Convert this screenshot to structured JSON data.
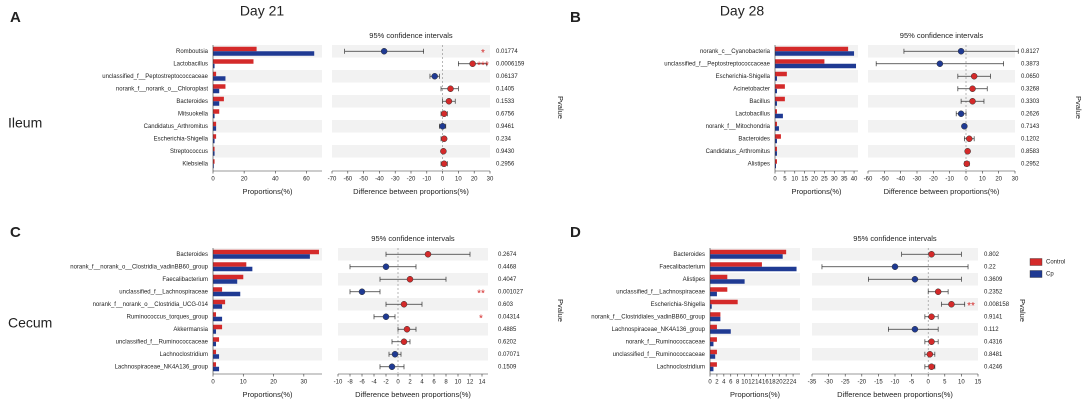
{
  "chart_data": {
    "type": "extended_error_bar",
    "legend": [
      {
        "name": "Control",
        "color": "#d42a2a"
      },
      {
        "name": "Cp",
        "color": "#1f3a93"
      }
    ],
    "column_titles": [
      "Day 21",
      "Day 28"
    ],
    "row_titles": [
      "Ileum",
      "Cecum"
    ],
    "panels": [
      {
        "letter": "A",
        "ci_title": "95% confidence intervals",
        "bar_axis_label": "Proportions(%)",
        "ci_axis_label": "Difference between proportions(%)",
        "pvalue_label": "Pvalue",
        "categories": [
          "Romboutsia",
          "Lactobacillus",
          "unclassified_f__Peptostreptococcaceae",
          "norank_f__norank_o__Chloroplast",
          "Bacteroides",
          "Mitsuokella",
          "Candidatus_Arthromitus",
          "Escherichia-Shigella",
          "Streptococcus",
          "Klebsiella"
        ],
        "control": [
          28,
          26,
          2,
          8,
          7,
          4,
          2,
          2,
          1,
          1
        ],
        "cp": [
          65,
          1,
          8,
          4,
          4,
          1,
          2,
          1,
          1,
          0.5
        ],
        "differences": [
          -37,
          19,
          -5,
          5,
          4,
          1,
          0,
          1,
          0.5,
          1
        ],
        "ci_low": [
          -62,
          10,
          -8,
          -1,
          0,
          -1,
          -2,
          -1,
          0,
          -1
        ],
        "ci_high": [
          -12,
          28,
          -2,
          10,
          8,
          3,
          2,
          2,
          1,
          3
        ],
        "pvalues": [
          "0.01774",
          "0.0006159",
          "0.06137",
          "0.1405",
          "0.1533",
          "0.6756",
          "0.9461",
          "0.234",
          "0.9430",
          "0.2956"
        ],
        "significance": [
          "*",
          "***",
          null,
          null,
          null,
          null,
          null,
          null,
          null,
          null
        ],
        "bar_xlim": [
          0,
          70
        ],
        "bar_xticks": [
          0,
          20,
          40,
          60
        ],
        "ci_xlim": [
          -70,
          30
        ],
        "ci_xticks": [
          -70,
          -60,
          -50,
          -40,
          -30,
          -20,
          -10,
          0,
          10,
          20,
          30
        ]
      },
      {
        "letter": "B",
        "ci_title": "95% confidence intervals",
        "bar_axis_label": "Proportions(%)",
        "ci_axis_label": "Difference between proportions(%)",
        "pvalue_label": "Pvalue",
        "categories": [
          "norank_c__Cyanobacteria",
          "unclassified_f__Peptostreptococcaceae",
          "Escherichia-Shigella",
          "Acinetobacter",
          "Bacillus",
          "Lactobacillus",
          "norank_f__Mitochondria",
          "Bacteroides",
          "Candidatus_Arthromitus",
          "Alistipes"
        ],
        "control": [
          37,
          25,
          6,
          5,
          5,
          1,
          1,
          3,
          1,
          1
        ],
        "cp": [
          40,
          41,
          1,
          1,
          1,
          4,
          2,
          1,
          1,
          0.5
        ],
        "differences": [
          -3,
          -16,
          5,
          4,
          4,
          -3,
          -1,
          2,
          1,
          0.5
        ],
        "ci_low": [
          -38,
          -55,
          -5,
          -5,
          -3,
          -6,
          -2,
          -1,
          0,
          -1
        ],
        "ci_high": [
          32,
          23,
          15,
          13,
          11,
          0,
          0,
          5,
          2,
          2
        ],
        "pvalues": [
          "0.8127",
          "0.3873",
          "0.0650",
          "0.3268",
          "0.3303",
          "0.2626",
          "0.7143",
          "0.1202",
          "0.8583",
          "0.2952"
        ],
        "significance": [
          null,
          null,
          null,
          null,
          null,
          null,
          null,
          null,
          null,
          null
        ],
        "bar_xlim": [
          0,
          42
        ],
        "bar_xticks": [
          0,
          5,
          10,
          15,
          20,
          25,
          30,
          35,
          40
        ],
        "ci_xlim": [
          -60,
          30
        ],
        "ci_xticks": [
          -60,
          -50,
          -40,
          -30,
          -20,
          -10,
          0,
          10,
          20,
          30
        ]
      },
      {
        "letter": "C",
        "ci_title": "95% confidence intervals",
        "bar_axis_label": "Proportions(%)",
        "ci_axis_label": "Difference between proportions(%)",
        "pvalue_label": "Pvalue",
        "categories": [
          "Bacteroides",
          "norank_f__norank_o__Clostridia_vadinBB60_group",
          "Faecalibacterium",
          "unclassified_f__Lachnospiraceae",
          "norank_f__norank_o__Clostridia_UCG-014",
          "Ruminococcus_torques_group",
          "Akkermansia",
          "unclassified_f__Ruminococcaceae",
          "Lachnoclostridium",
          "Lachnospiraceae_NK4A136_group"
        ],
        "control": [
          35,
          11,
          10,
          3,
          4,
          1,
          3,
          2,
          1,
          1
        ],
        "cp": [
          32,
          13,
          8,
          9,
          3,
          3,
          1,
          1,
          2,
          2
        ],
        "differences": [
          5,
          -2,
          2,
          -6,
          1,
          -2,
          1.5,
          1,
          -0.5,
          -1
        ],
        "ci_low": [
          -2,
          -8,
          -3,
          -8,
          -2,
          -4,
          0,
          -1,
          -1.5,
          -3
        ],
        "ci_high": [
          12,
          3,
          8,
          -3,
          4,
          -0.5,
          3,
          2,
          0.5,
          1
        ],
        "pvalues": [
          "0.2674",
          "0.4468",
          "0.4047",
          "0.001027",
          "0.603",
          "0.04314",
          "0.4885",
          "0.6202",
          "0.07071",
          "0.1509"
        ],
        "significance": [
          null,
          null,
          null,
          "**",
          null,
          "*",
          null,
          null,
          null,
          null
        ],
        "bar_xlim": [
          0,
          36
        ],
        "bar_xticks": [
          0,
          10,
          20,
          30
        ],
        "ci_xlim": [
          -10,
          15
        ],
        "ci_xticks": [
          -10,
          -8,
          -6,
          -4,
          -2,
          0,
          2,
          4,
          6,
          8,
          10,
          12,
          14
        ]
      },
      {
        "letter": "D",
        "ci_title": "95% confidence intervals",
        "bar_axis_label": "Proportions(%)",
        "ci_axis_label": "Difference between proportions(%)",
        "pvalue_label": "Pvalue",
        "categories": [
          "Bacteroides",
          "Faecalibacterium",
          "Alistipes",
          "unclassified_f__Lachnospiraceae",
          "Escherichia-Shigella",
          "norank_f__Clostridiales_vadinBB60_group",
          "Lachnospiraceae_NK4A136_group",
          "norank_f__Ruminococcaceae",
          "unclassified_f__Ruminococcaceae",
          "Lachnoclostridium"
        ],
        "control": [
          22,
          15,
          5,
          5,
          8,
          3,
          2,
          2,
          2,
          2
        ],
        "cp": [
          21,
          25,
          10,
          2,
          0.5,
          3,
          6,
          1,
          1.5,
          1
        ],
        "differences": [
          1,
          -10,
          -4,
          3,
          7,
          1,
          -4,
          1,
          0.5,
          1
        ],
        "ci_low": [
          -8,
          -32,
          -18,
          0,
          4,
          -1,
          -12,
          -1,
          -1,
          -1
        ],
        "ci_high": [
          10,
          12,
          10,
          6,
          11,
          3,
          3,
          3,
          2,
          2
        ],
        "pvalues": [
          "0.802",
          "0.22",
          "0.3609",
          "0.2352",
          "0.008158",
          "0.9141",
          "0.112",
          "0.4316",
          "0.8481",
          "0.4246"
        ],
        "significance": [
          null,
          null,
          null,
          null,
          "**",
          null,
          null,
          null,
          null,
          null
        ],
        "bar_xlim": [
          0,
          26
        ],
        "bar_xticks": [
          0,
          2,
          4,
          6,
          8,
          10,
          12,
          14,
          16,
          18,
          20,
          22,
          24
        ],
        "ci_xlim": [
          -35,
          15
        ],
        "ci_xticks": [
          -35,
          -30,
          -25,
          -20,
          -15,
          -10,
          -5,
          0,
          5,
          10,
          15
        ]
      }
    ]
  }
}
